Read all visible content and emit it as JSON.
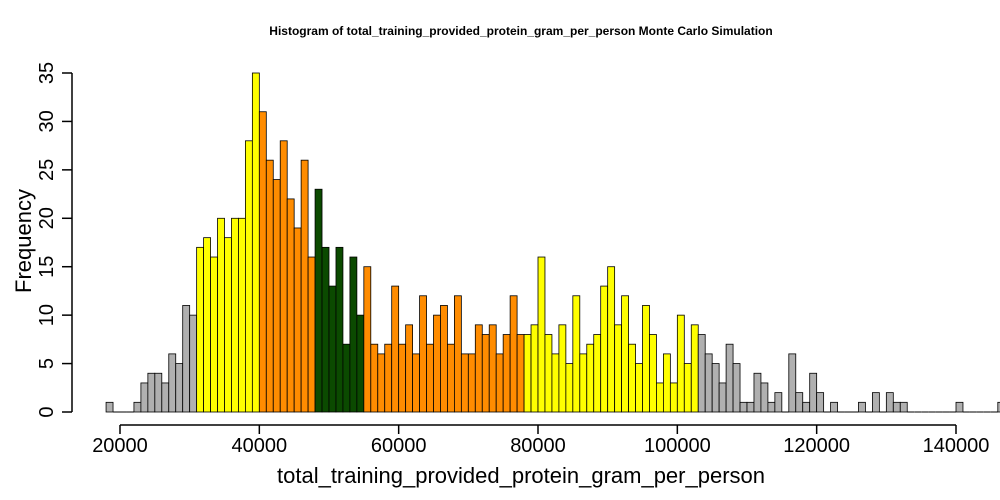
{
  "chart_data": {
    "type": "bar",
    "title": "Histogram of  total_training_provided_protein_gram_per_person  Monte Carlo Simulation",
    "xlabel": "total_training_provided_protein_gram_per_person",
    "ylabel": "Frequency",
    "bin_width": 1000,
    "x_start": 18000,
    "xlim": [
      18000,
      137000
    ],
    "ylim": [
      0,
      35
    ],
    "x_ticks": [
      20000,
      40000,
      60000,
      80000,
      100000,
      120000,
      140000
    ],
    "y_ticks": [
      0,
      5,
      10,
      15,
      20,
      25,
      30,
      35
    ],
    "grid": false,
    "values": [
      1,
      0,
      0,
      0,
      1,
      3,
      4,
      4,
      3,
      6,
      5,
      11,
      10,
      17,
      18,
      16,
      20,
      18,
      20,
      20,
      28,
      35,
      31,
      26,
      24,
      28,
      22,
      19,
      26,
      16,
      23,
      17,
      13,
      17,
      7,
      16,
      10,
      15,
      7,
      6,
      7,
      13,
      7,
      9,
      6,
      12,
      7,
      10,
      11,
      7,
      12,
      6,
      6,
      9,
      8,
      9,
      6,
      8,
      12,
      8,
      8,
      9,
      16,
      8,
      6,
      9,
      5,
      12,
      6,
      7,
      8,
      13,
      15,
      9,
      12,
      7,
      5,
      11,
      8,
      3,
      6,
      3,
      10,
      5,
      9,
      8,
      6,
      5,
      3,
      7,
      5,
      1,
      1,
      4,
      3,
      1,
      2,
      0,
      6,
      2,
      1,
      4,
      2,
      0,
      1,
      0,
      0,
      0,
      1,
      0,
      2,
      0,
      2,
      1,
      1,
      0,
      0,
      0,
      0,
      0,
      0,
      0,
      1,
      0,
      0,
      0,
      0,
      0,
      1
    ],
    "color_ranges": [
      {
        "from": 18000,
        "to": 31000,
        "color": "#b0b0b0"
      },
      {
        "from": 31000,
        "to": 40000,
        "color": "#ffff00"
      },
      {
        "from": 40000,
        "to": 48000,
        "color": "#ff8c00"
      },
      {
        "from": 48000,
        "to": 55000,
        "color": "#0b4a00"
      },
      {
        "from": 55000,
        "to": 78000,
        "color": "#ff8c00"
      },
      {
        "from": 78000,
        "to": 103000,
        "color": "#ffff00"
      },
      {
        "from": 103000,
        "to": 137000,
        "color": "#b0b0b0"
      }
    ]
  }
}
